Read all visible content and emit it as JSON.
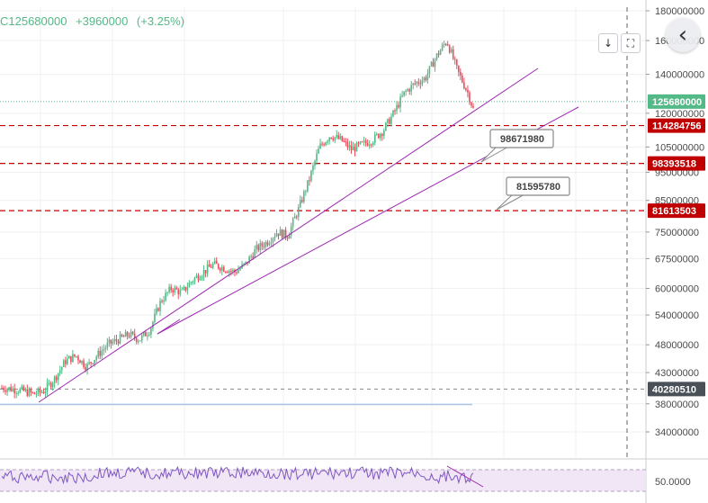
{
  "header": {
    "symbol_fragment": "C125680000",
    "change": "+3960000",
    "change_pct": "(+3.25%)"
  },
  "toolbar": {
    "download_icon": "arrow-down-icon",
    "fullscreen_icon": "fullscreen-icon",
    "nav_icon": "chevron-left-icon"
  },
  "colors": {
    "up": "#53b987",
    "down": "#eb4d5c",
    "trendline": "#9c27b0",
    "dashed_level": "#c00000",
    "current_price_tag": "#53b987",
    "grey_tag": "#4a5058"
  },
  "chart_data": {
    "type": "candlestick",
    "y_scale": "log",
    "y_ticks": [
      "180000000",
      "160000000",
      "140000000",
      "120000000",
      "105000000",
      "95000000",
      "85000000",
      "75000000",
      "67500000",
      "60000000",
      "54000000",
      "48000000",
      "43000000",
      "38000000",
      "34000000"
    ],
    "price_tags": [
      {
        "label": "125680000",
        "value": 125680000,
        "style": "current"
      },
      {
        "label": "114284756",
        "value": 114284756,
        "style": "red"
      },
      {
        "label": "98393518",
        "value": 98393518,
        "style": "red"
      },
      {
        "label": "81613503",
        "value": 81613503,
        "style": "red"
      },
      {
        "label": "40280510",
        "value": 40280510,
        "style": "grey"
      }
    ],
    "callouts": [
      {
        "label": "98671980",
        "value": 98671980
      },
      {
        "label": "81595780",
        "value": 81595780
      }
    ],
    "trend_path": [
      [
        0,
        40.5
      ],
      [
        2,
        40.3
      ],
      [
        4,
        40
      ],
      [
        6,
        39.5
      ],
      [
        8,
        40
      ],
      [
        10,
        42
      ],
      [
        12,
        45
      ],
      [
        14,
        46
      ],
      [
        16,
        44
      ],
      [
        18,
        46
      ],
      [
        20,
        48
      ],
      [
        22,
        49
      ],
      [
        24,
        50
      ],
      [
        26,
        49
      ],
      [
        28,
        51
      ],
      [
        30,
        57
      ],
      [
        32,
        60
      ],
      [
        34,
        59
      ],
      [
        36,
        62
      ],
      [
        38,
        64
      ],
      [
        40,
        66
      ],
      [
        42,
        65
      ],
      [
        44,
        64
      ],
      [
        46,
        66
      ],
      [
        48,
        70
      ],
      [
        50,
        72
      ],
      [
        52,
        75
      ],
      [
        54,
        74
      ],
      [
        56,
        82
      ],
      [
        58,
        92
      ],
      [
        60,
        105
      ],
      [
        62,
        110
      ],
      [
        64,
        108
      ],
      [
        66,
        104
      ],
      [
        68,
        106
      ],
      [
        70,
        108
      ],
      [
        72,
        112
      ],
      [
        74,
        120
      ],
      [
        76,
        130
      ],
      [
        78,
        135
      ],
      [
        80,
        138
      ],
      [
        82,
        150
      ],
      [
        84,
        160
      ],
      [
        86,
        142
      ],
      [
        88,
        130
      ],
      [
        89,
        122
      ]
    ],
    "oscillator": {
      "label": "50.0000",
      "level": 50
    }
  }
}
